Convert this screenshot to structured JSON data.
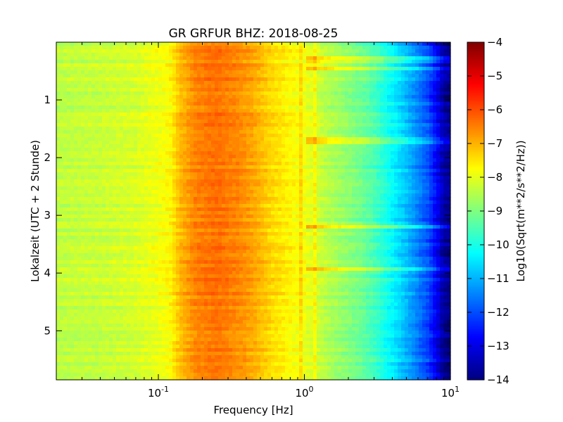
{
  "chart_data": {
    "type": "heatmap",
    "title": "GR GRFUR BHZ: 2018-08-25",
    "xlabel": "Frequency [Hz]",
    "ylabel": "Lokalzeit (UTC + 2 Stunde)",
    "x_scale": "log",
    "xlim": [
      0.02,
      10
    ],
    "ylim": [
      5.85,
      0
    ],
    "y_inverted": true,
    "x_ticks": [
      {
        "value": 0.1,
        "base": "10",
        "exp": "-1"
      },
      {
        "value": 1,
        "base": "10",
        "exp": "0"
      },
      {
        "value": 10,
        "base": "10",
        "exp": "1"
      }
    ],
    "y_ticks": [
      {
        "value": 1,
        "label": "1"
      },
      {
        "value": 2,
        "label": "2"
      },
      {
        "value": 3,
        "label": "3"
      },
      {
        "value": 4,
        "label": "4"
      },
      {
        "value": 5,
        "label": "5"
      }
    ],
    "colorbar": {
      "label": "Log10(Sqrt(m**2/s**2/Hz))",
      "colormap": "jet",
      "range": [
        -14,
        -4
      ],
      "ticks": [
        {
          "value": -4,
          "label": "−4"
        },
        {
          "value": -5,
          "label": "−5"
        },
        {
          "value": -6,
          "label": "−6"
        },
        {
          "value": -7,
          "label": "−7"
        },
        {
          "value": -8,
          "label": "−8"
        },
        {
          "value": -9,
          "label": "−9"
        },
        {
          "value": -10,
          "label": "−10"
        },
        {
          "value": -11,
          "label": "−11"
        },
        {
          "value": -12,
          "label": "−12"
        },
        {
          "value": -13,
          "label": "−13"
        },
        {
          "value": -14,
          "label": "−14"
        }
      ]
    },
    "spectrum_profile": {
      "frequency_hz": [
        0.02,
        0.04,
        0.07,
        0.1,
        0.12,
        0.14,
        0.18,
        0.25,
        0.35,
        0.45,
        0.6,
        0.8,
        1.0,
        1.2,
        1.5,
        2.0,
        2.5,
        3.0,
        3.5,
        4.0,
        5.0,
        6.0,
        7.0,
        8.0,
        8.5,
        9.0,
        10.0
      ],
      "value_log10": [
        -8.4,
        -8.3,
        -8.15,
        -7.9,
        -7.75,
        -7.1,
        -6.55,
        -6.35,
        -6.6,
        -6.9,
        -7.4,
        -7.7,
        -7.9,
        -8.2,
        -8.55,
        -8.9,
        -9.2,
        -9.55,
        -9.95,
        -10.3,
        -10.9,
        -11.5,
        -12.0,
        -12.8,
        -13.2,
        -13.7,
        -13.9
      ]
    },
    "notes": {
      "narrow_line_hz": [
        0.95,
        1.15
      ],
      "horizontal_event_times": [
        0.3,
        0.45,
        1.7,
        3.2,
        3.95
      ]
    }
  }
}
